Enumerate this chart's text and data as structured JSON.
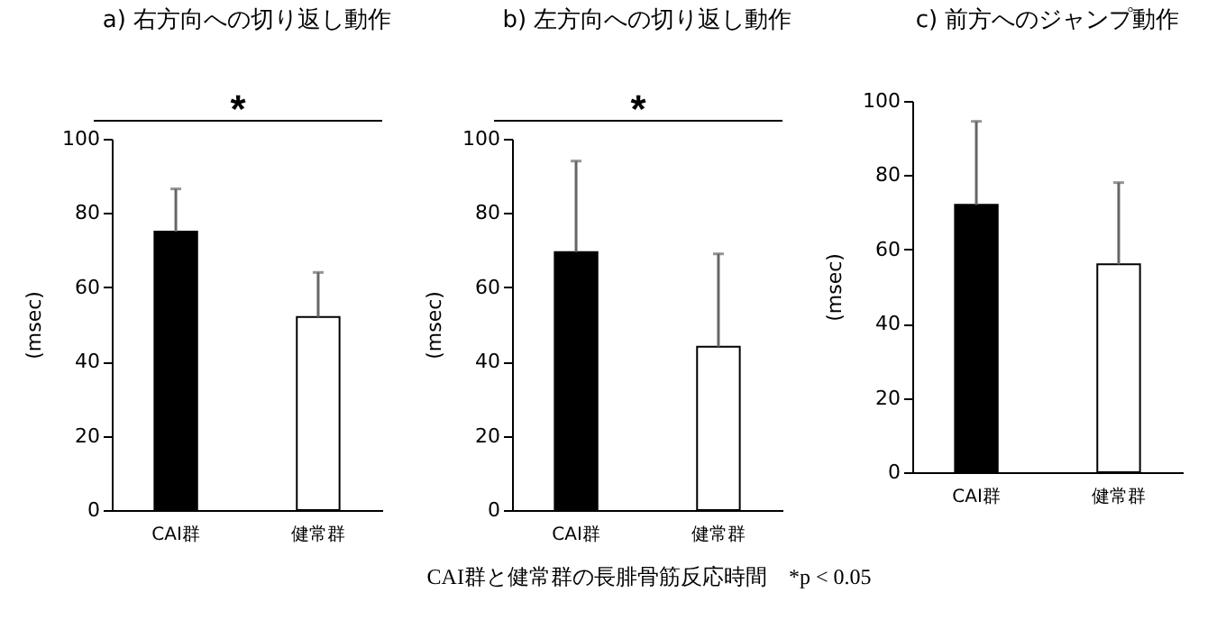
{
  "chart_data": [
    {
      "type": "bar",
      "title": "a) 右方向への切り返し動作",
      "ylabel": "(msec)",
      "categories": [
        "CAI群",
        "健常群"
      ],
      "values": [
        75,
        52
      ],
      "colors": [
        "#000000",
        "#ffffff"
      ],
      "errors": [
        [
          75,
          86.5
        ],
        [
          52,
          64
        ]
      ],
      "ylim": [
        0,
        100
      ],
      "yticks": [
        0,
        20,
        40,
        60,
        80,
        100
      ],
      "annotations": [
        "*"
      ]
    },
    {
      "type": "bar",
      "title": "b) 左方向への切り返し動作",
      "ylabel": "(msec)",
      "categories": [
        "CAI群",
        "健常群"
      ],
      "values": [
        69.5,
        44
      ],
      "colors": [
        "#000000",
        "#ffffff"
      ],
      "errors": [
        [
          69.5,
          94
        ],
        [
          44,
          69
        ]
      ],
      "ylim": [
        0,
        100
      ],
      "yticks": [
        0,
        20,
        40,
        60,
        80,
        100
      ],
      "annotations": [
        "*",
        "CAI群と健常群の長腓骨筋反応時間　*p < 0.05"
      ]
    },
    {
      "type": "bar",
      "title": "c) 前方へのジャンプ動作",
      "ylabel": "(msec)",
      "categories": [
        "CAI群",
        "健常群"
      ],
      "values": [
        72,
        56
      ],
      "colors": [
        "#000000",
        "#ffffff"
      ],
      "errors": [
        [
          72,
          94.5
        ],
        [
          56,
          78
        ]
      ],
      "ylim": [
        0,
        100
      ],
      "yticks": [
        0,
        20,
        40,
        60,
        80,
        100
      ]
    }
  ]
}
